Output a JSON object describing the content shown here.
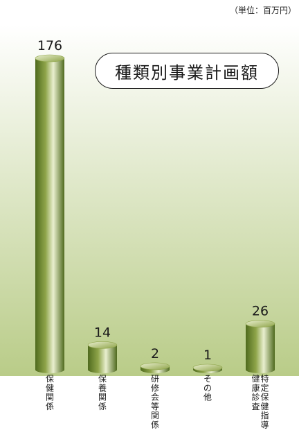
{
  "unit_note": "（単位：百万円）",
  "chart_data": {
    "type": "bar",
    "title": "種類別事業計画額",
    "categories": [
      "保健関係",
      "保養関係",
      "研修会等関係",
      "その他",
      "特定保健指導健康診査"
    ],
    "category_lines": [
      [
        "保健関係"
      ],
      [
        "保養関係"
      ],
      [
        "研修会等関係"
      ],
      [
        "その他"
      ],
      [
        "特定保健指導",
        "健康診査"
      ]
    ],
    "values": [
      176,
      14,
      2,
      1,
      26
    ],
    "value_labels": [
      "176",
      "14",
      "2",
      "1",
      "26"
    ],
    "ylim": [
      0,
      180
    ],
    "grid": false,
    "bar_style": "3d-cylinder",
    "colors": {
      "bar_dark": "#4f6a1e",
      "bar_mid": "#8ea449",
      "bar_light": "#e9efcf",
      "background_top": "#ffffff",
      "background_bottom": "#b9cc88"
    }
  }
}
